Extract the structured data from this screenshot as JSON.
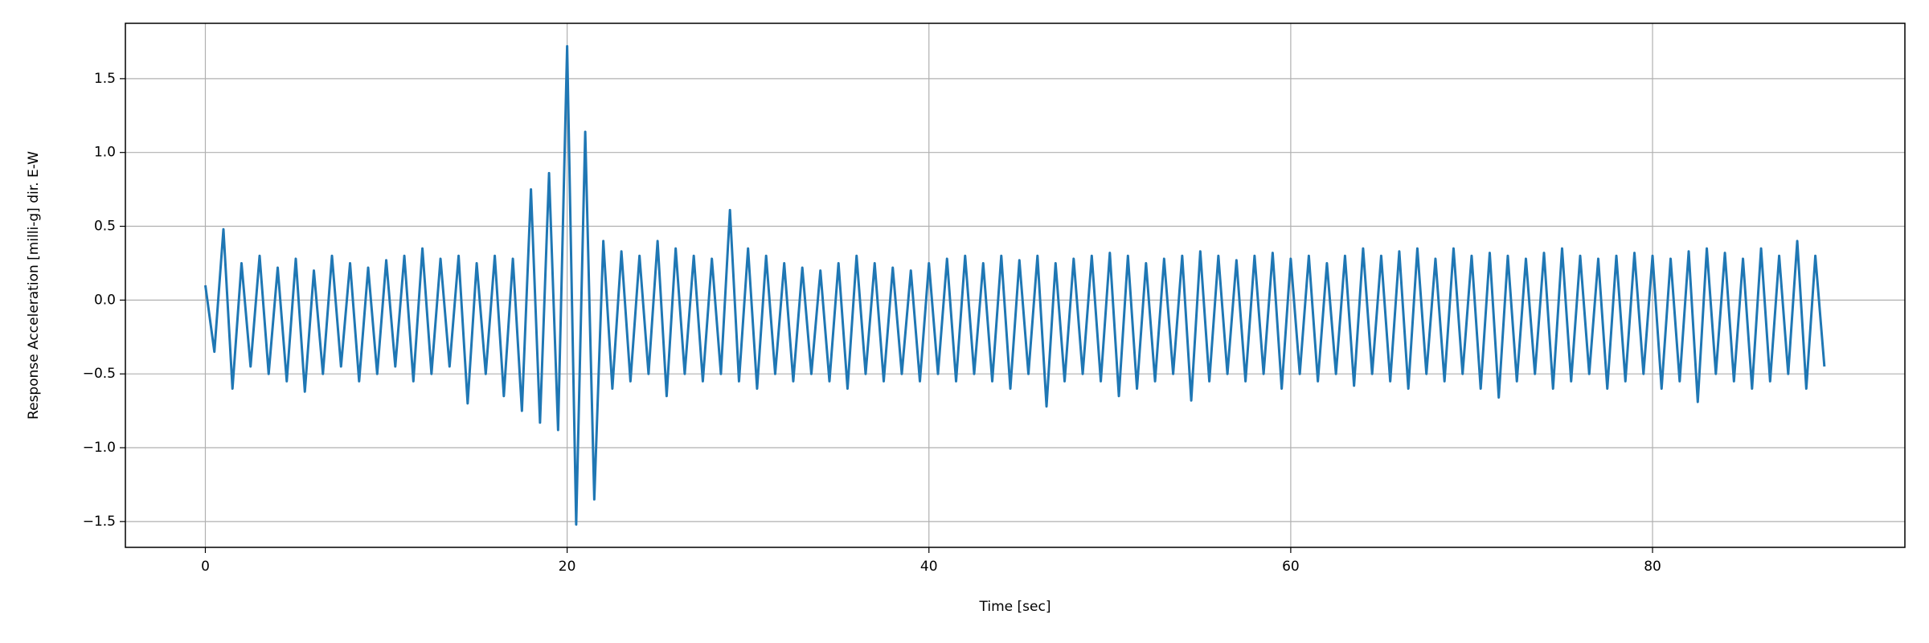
{
  "chart_data": {
    "type": "line",
    "xlabel": "Time [sec]",
    "ylabel": "Response Acceleration [milli-g] dir. E-W",
    "xlim": [
      -4.42,
      93.95
    ],
    "ylim": [
      -1.675,
      1.875
    ],
    "xticks": [
      0,
      20,
      40,
      60,
      80
    ],
    "yticks": [
      {
        "value": -1.5,
        "label": "−1.5"
      },
      {
        "value": -1.0,
        "label": "−1.0"
      },
      {
        "value": -0.5,
        "label": "−0.5"
      },
      {
        "value": 0.0,
        "label": "0.0"
      },
      {
        "value": 0.5,
        "label": "0.5"
      },
      {
        "value": 1.0,
        "label": "1.0"
      },
      {
        "value": 1.5,
        "label": "1.5"
      }
    ],
    "grid": true,
    "series": [
      {
        "color": "#1f77b4",
        "x": [
          0,
          0.5,
          1,
          1.5,
          2,
          2.5,
          3,
          3.5,
          4,
          4.5,
          5,
          5.5,
          6,
          6.5,
          7,
          7.5,
          8,
          8.5,
          9,
          9.5,
          10,
          10.5,
          11,
          11.5,
          12,
          12.5,
          13,
          13.5,
          14,
          14.5,
          15,
          15.5,
          16,
          16.5,
          17,
          17.5,
          18,
          18.5,
          19,
          19.5,
          20,
          20.5,
          21,
          21.5,
          22,
          22.5,
          23,
          23.5,
          24,
          24.5,
          25,
          25.5,
          26,
          26.5,
          27,
          27.5,
          28,
          28.5,
          29,
          29.5,
          30,
          30.5,
          31,
          31.5,
          32,
          32.5,
          33,
          33.5,
          34,
          34.5,
          35,
          35.5,
          36,
          36.5,
          37,
          37.5,
          38,
          38.5,
          39,
          39.5,
          40,
          40.5,
          41,
          41.5,
          42,
          42.5,
          43,
          43.5,
          44,
          44.5,
          45,
          45.5,
          46,
          46.5,
          47,
          47.5,
          48,
          48.5,
          49,
          49.5,
          50,
          50.5,
          51,
          51.5,
          52,
          52.5,
          53,
          53.5,
          54,
          54.5,
          55,
          55.5,
          56,
          56.5,
          57,
          57.5,
          58,
          58.5,
          59,
          59.5,
          60,
          60.5,
          61,
          61.5,
          62,
          62.5,
          63,
          63.5,
          64,
          64.5,
          65,
          65.5,
          66,
          66.5,
          67,
          67.5,
          68,
          68.5,
          69,
          69.5,
          70,
          70.5,
          71,
          71.5,
          72,
          72.5,
          73,
          73.5,
          74,
          74.5,
          75,
          75.5,
          76,
          76.5,
          77,
          77.5,
          78,
          78.5,
          79,
          79.5,
          80,
          80.5,
          81,
          81.5,
          82,
          82.5,
          83,
          83.5,
          84,
          84.5,
          85,
          85.5,
          86,
          86.5,
          87,
          87.5,
          88,
          88.5,
          89,
          89.5
        ],
        "values": [
          0.1,
          -0.35,
          0.48,
          -0.6,
          0.25,
          -0.45,
          0.3,
          -0.5,
          0.22,
          -0.55,
          0.28,
          -0.62,
          0.2,
          -0.5,
          0.3,
          -0.45,
          0.25,
          -0.55,
          0.22,
          -0.5,
          0.27,
          -0.45,
          0.3,
          -0.55,
          0.35,
          -0.5,
          0.28,
          -0.45,
          0.3,
          -0.7,
          0.25,
          -0.5,
          0.3,
          -0.65,
          0.28,
          -0.75,
          0.75,
          -0.83,
          0.86,
          -0.88,
          1.72,
          -1.52,
          1.14,
          -1.35,
          0.4,
          -0.6,
          0.33,
          -0.55,
          0.3,
          -0.5,
          0.4,
          -0.65,
          0.35,
          -0.5,
          0.3,
          -0.55,
          0.28,
          -0.5,
          0.61,
          -0.55,
          0.35,
          -0.6,
          0.3,
          -0.5,
          0.25,
          -0.55,
          0.22,
          -0.5,
          0.2,
          -0.55,
          0.25,
          -0.6,
          0.3,
          -0.5,
          0.25,
          -0.55,
          0.22,
          -0.5,
          0.2,
          -0.55,
          0.25,
          -0.5,
          0.28,
          -0.55,
          0.3,
          -0.5,
          0.25,
          -0.55,
          0.3,
          -0.6,
          0.27,
          -0.5,
          0.3,
          -0.72,
          0.25,
          -0.55,
          0.28,
          -0.5,
          0.3,
          -0.55,
          0.32,
          -0.65,
          0.3,
          -0.6,
          0.25,
          -0.55,
          0.28,
          -0.5,
          0.3,
          -0.68,
          0.33,
          -0.55,
          0.3,
          -0.5,
          0.27,
          -0.55,
          0.3,
          -0.5,
          0.32,
          -0.6,
          0.28,
          -0.5,
          0.3,
          -0.55,
          0.25,
          -0.5,
          0.3,
          -0.58,
          0.35,
          -0.5,
          0.3,
          -0.55,
          0.33,
          -0.6,
          0.35,
          -0.5,
          0.28,
          -0.55,
          0.35,
          -0.5,
          0.3,
          -0.6,
          0.32,
          -0.66,
          0.3,
          -0.55,
          0.28,
          -0.5,
          0.32,
          -0.6,
          0.35,
          -0.55,
          0.3,
          -0.5,
          0.28,
          -0.6,
          0.3,
          -0.55,
          0.32,
          -0.5,
          0.3,
          -0.6,
          0.28,
          -0.55,
          0.33,
          -0.69,
          0.35,
          -0.5,
          0.32,
          -0.55,
          0.28,
          -0.6,
          0.35,
          -0.55,
          0.3,
          -0.5,
          0.4,
          -0.6,
          0.3,
          -0.45
        ]
      }
    ]
  }
}
